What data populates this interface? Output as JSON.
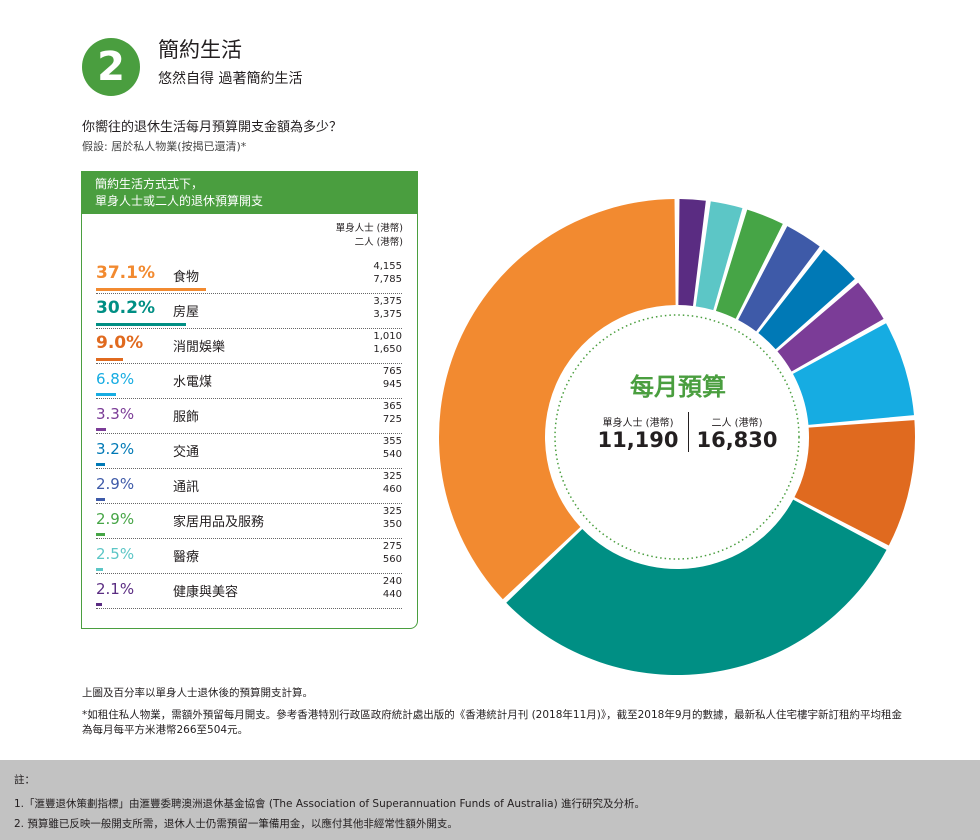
{
  "section": {
    "number": "2",
    "title": "簡約生活",
    "subtitle": "悠然自得 過著簡約生活"
  },
  "question": "你嚮往的退休生活每月預算開支金額為多少？",
  "assumption": "假設: 居於私人物業(按揭已還清)*",
  "panel": {
    "header_line1": "簡約生活方式式下，",
    "header_line2": "單身人士或二人的退休預算開支",
    "col_single": "單身人士 (港幣)",
    "col_couple": "二人 (港幣)"
  },
  "chart_data": {
    "type": "pie",
    "title": "每月預算",
    "categories": [
      "食物",
      "房屋",
      "消閒娛樂",
      "水電煤",
      "服飾",
      "交通",
      "通訊",
      "家居用品及服務",
      "醫療",
      "健康與美容"
    ],
    "percent_labels": [
      "37.1%",
      "30.2%",
      "9.0%",
      "6.8%",
      "3.3%",
      "3.2%",
      "2.9%",
      "2.9%",
      "2.5%",
      "2.1%"
    ],
    "values": [
      37.1,
      30.2,
      9.0,
      6.8,
      3.3,
      3.2,
      2.9,
      2.9,
      2.5,
      2.1
    ],
    "series": [
      {
        "name": "單身人士 (港幣)",
        "values": [
          "4,155",
          "3,375",
          "1,010",
          "765",
          "365",
          "355",
          "325",
          "325",
          "275",
          "240"
        ]
      },
      {
        "name": "二人 (港幣)",
        "values": [
          "7,785",
          "3,375",
          "1,650",
          "945",
          "725",
          "540",
          "460",
          "350",
          "560",
          "440"
        ]
      }
    ],
    "colors": [
      "#f28a30",
      "#008f84",
      "#e06a1f",
      "#16ace2",
      "#7b3c97",
      "#0079b6",
      "#3e5aa8",
      "#46a546",
      "#5cc6c6",
      "#5a2c82"
    ],
    "pct_colors": [
      "#f28a30",
      "#008f84",
      "#e06a1f",
      "#16ace2",
      "#7b3c97",
      "#0079b6",
      "#3e5aa8",
      "#46a546",
      "#5cc6c6",
      "#5a2c82"
    ],
    "totals": {
      "single_label": "單身人士 (港幣)",
      "single_value": "11,190",
      "couple_label": "二人 (港幣)",
      "couple_value": "16,830"
    }
  },
  "notes": {
    "line1": "上圖及百分率以單身人士退休後的預算開支計算。",
    "line2": "*如租住私人物業，需額外預留每月開支。參考香港特別行政區政府統計處出版的《香港統計月刊 (2018年11月)》，截至2018年9月的數據，最新私人住宅樓宇新訂租約平均租金為每月每平方米港幣266至504元。"
  },
  "footer": {
    "heading": "註：",
    "item1": "1.「滙豐退休策劃指標」由滙豐委聘澳洲退休基金協會 (The Association of Superannuation Funds of Australia) 進行研究及分析。",
    "item2": "2. 預算雖已反映一般開支所需，退休人士仍需預留一筆備用金，以應付其他非經常性額外開支。"
  }
}
